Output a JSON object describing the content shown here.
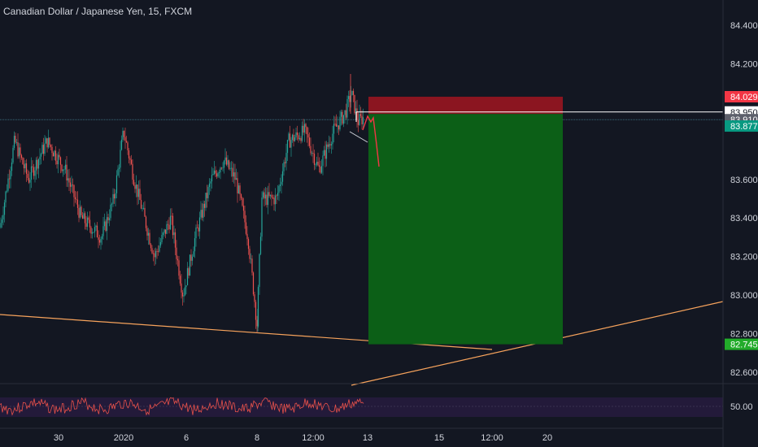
{
  "chart_data": {
    "type": "candlestick",
    "symbol_title": "Canadian Dollar / Japanese Yen, 15, FXCM",
    "y_axis": {
      "ticks": [
        "84.400",
        "84.200",
        "83.600",
        "83.400",
        "83.200",
        "83.000",
        "82.800",
        "82.600"
      ],
      "tick_values": [
        84.4,
        84.2,
        83.6,
        83.4,
        83.2,
        83.0,
        82.8,
        82.6
      ],
      "range": [
        82.52,
        84.62
      ]
    },
    "x_axis": {
      "ticks": [
        "30",
        "2020",
        "6",
        "8",
        "12:00",
        "13",
        "15",
        "12:00",
        "20"
      ]
    },
    "price_badges": [
      {
        "label": "84.029",
        "value": 84.029,
        "bg": "#f23645",
        "fg": "#ffffff"
      },
      {
        "label": "83.950",
        "value": 83.95,
        "bg": "#ffffff",
        "fg": "#131722"
      },
      {
        "label": "83.910",
        "value": 83.91,
        "bg": "#5d606b",
        "fg": "#ffffff"
      },
      {
        "label": "83.877",
        "value": 83.877,
        "bg": "#089981",
        "fg": "#ffffff"
      },
      {
        "label": "82.745",
        "value": 82.745,
        "bg": "#22ab2a",
        "fg": "#ffffff"
      }
    ],
    "position": {
      "side": "short",
      "entry": 83.91,
      "stop": 84.029,
      "target": 82.745,
      "stop_color": "#8b1520",
      "target_color": "#0c5f17"
    },
    "indicator": {
      "label": "50.00",
      "value": 50.0
    },
    "colors": {
      "up": "#26a69a",
      "down": "#ef5350",
      "trendline": "#f7a35c",
      "background": "#131722"
    }
  }
}
